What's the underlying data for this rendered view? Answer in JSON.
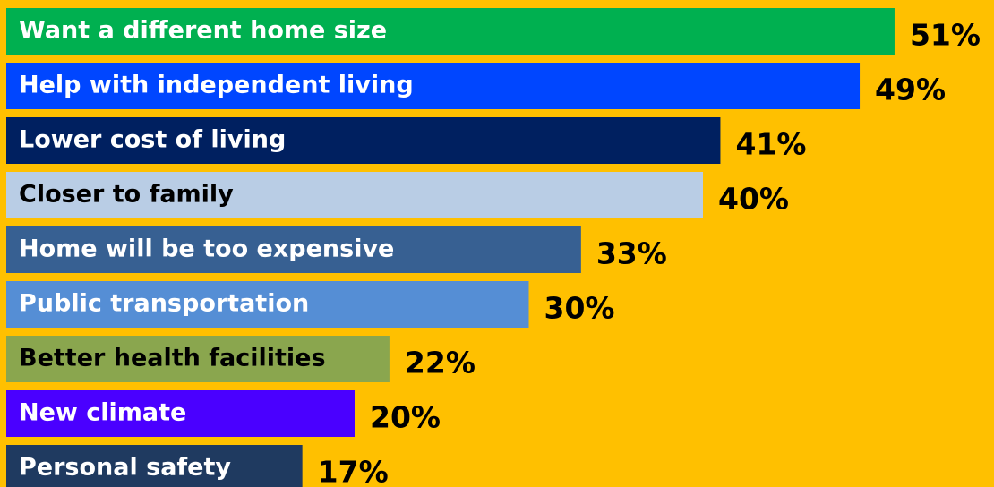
{
  "chart_data": {
    "type": "bar",
    "orientation": "horizontal",
    "categories": [
      "Want a different home size",
      "Help with independent living",
      "Lower cost of living",
      "Closer to family",
      "Home will be too expensive",
      "Public transportation",
      "Better health facilities",
      "New climate",
      "Personal safety"
    ],
    "values": [
      51,
      49,
      41,
      40,
      33,
      30,
      22,
      20,
      17
    ],
    "value_labels": [
      "51%",
      "49%",
      "41%",
      "40%",
      "33%",
      "30%",
      "22%",
      "20%",
      "17%"
    ],
    "colors": [
      "#00b050",
      "#0046ff",
      "#002060",
      "#b9cde5",
      "#376092",
      "#558ed5",
      "#8aa64e",
      "#4a00ff",
      "#1f3a60"
    ],
    "label_colors": [
      "#ffffff",
      "#ffffff",
      "#ffffff",
      "#000000",
      "#ffffff",
      "#ffffff",
      "#000000",
      "#ffffff",
      "#ffffff"
    ],
    "background": "#ffc000"
  }
}
